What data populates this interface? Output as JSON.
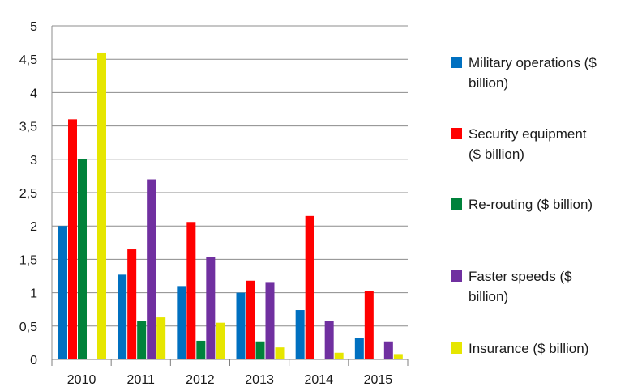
{
  "chart_data": {
    "type": "bar",
    "title": "",
    "xlabel": "",
    "ylabel": "",
    "ylim": [
      0,
      5
    ],
    "yticks": [
      "0",
      "0,5",
      "1",
      "1,5",
      "2",
      "2,5",
      "3",
      "3,5",
      "4",
      "4,5",
      "5"
    ],
    "grid": "horizontal",
    "legend_position": "right",
    "categories": [
      "2010",
      "2011",
      "2012",
      "2013",
      "2014",
      "2015"
    ],
    "series": [
      {
        "name": "Military operations ($ billion)",
        "legend_lines": [
          "Military operations ($",
          "billion)"
        ],
        "color": "#0070C0",
        "values": [
          2.0,
          1.27,
          1.1,
          1.0,
          0.74,
          0.32
        ]
      },
      {
        "name": "Security equipment ($ billion)",
        "legend_lines": [
          "Security equipment",
          "($ billion)"
        ],
        "color": "#FF0000",
        "values": [
          3.6,
          1.65,
          2.06,
          1.18,
          2.15,
          1.02
        ]
      },
      {
        "name": "Re-routing ($ billion)",
        "legend_lines": [
          "Re-routing ($ billion)"
        ],
        "color": "#00823B",
        "values": [
          3.0,
          0.58,
          0.28,
          0.27,
          0.0,
          0.0
        ]
      },
      {
        "name": "Faster speeds ($ billion)",
        "legend_lines": [
          "Faster speeds  ($",
          "billion)"
        ],
        "color": "#7030A0",
        "values": [
          0.0,
          2.7,
          1.53,
          1.16,
          0.58,
          0.27
        ]
      },
      {
        "name": "Insurance ($ billion)",
        "legend_lines": [
          "Insurance ($ billion)"
        ],
        "color": "#E6E600",
        "values": [
          4.6,
          0.63,
          0.55,
          0.18,
          0.1,
          0.08
        ]
      }
    ]
  }
}
